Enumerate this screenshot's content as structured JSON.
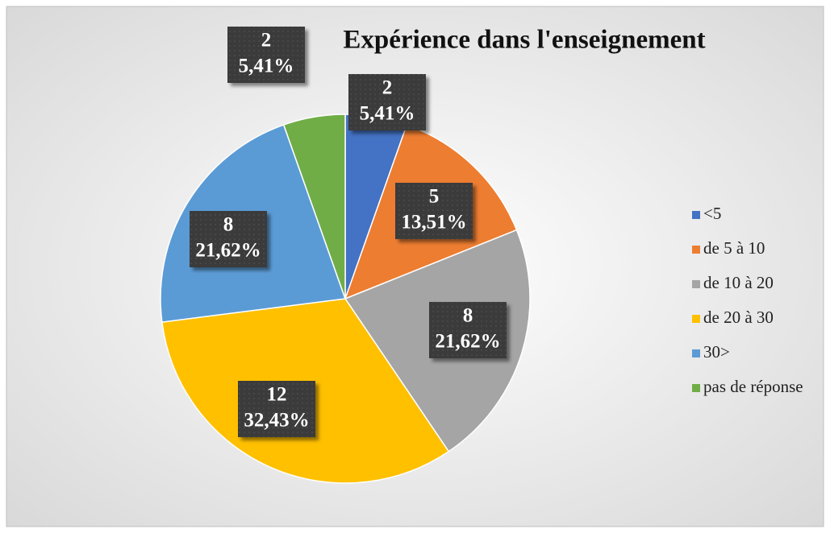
{
  "chart_data": {
    "type": "pie",
    "title": "Expérience dans l'enseignement",
    "categories": [
      "<5",
      "de 5 à 10",
      "de 10 à 20",
      "de 20 à 30",
      "30>",
      "pas de réponse"
    ],
    "values": [
      2,
      5,
      8,
      12,
      8,
      2
    ],
    "percent_labels": [
      "5,41%",
      "13,51%",
      "21,62%",
      "32,43%",
      "21,62%",
      "5,41%"
    ],
    "colors": [
      "#4472c4",
      "#ed7d31",
      "#a5a5a5",
      "#ffc000",
      "#5b9bd5",
      "#70ad47"
    ],
    "legend": "right"
  }
}
